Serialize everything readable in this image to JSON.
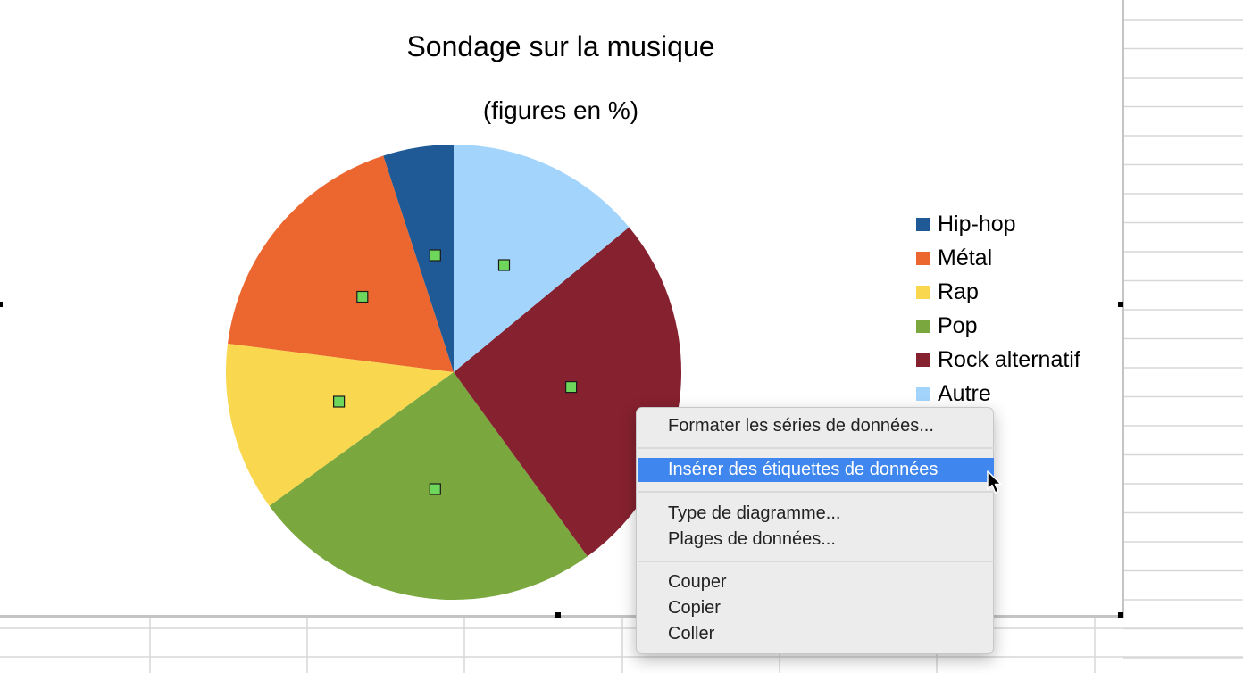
{
  "chart_data": {
    "type": "pie",
    "title": "Sondage sur la musique",
    "subtitle": "(figures en %)",
    "categories": [
      "Hip-hop",
      "Métal",
      "Rap",
      "Pop",
      "Rock alternatif",
      "Autre"
    ],
    "values": [
      5,
      18,
      12,
      25,
      26,
      14
    ],
    "colors": [
      "#205a96",
      "#ec6730",
      "#f9d84f",
      "#7aa73e",
      "#862130",
      "#a3d4fb"
    ],
    "legend_position": "right",
    "selection_marker_color": "#6fd65c"
  },
  "context_menu": {
    "items": [
      {
        "label": "Formater les séries de données..."
      },
      {
        "label": "Insérer des étiquettes de données"
      },
      {
        "label": "Type de diagramme..."
      },
      {
        "label": "Plages de données..."
      },
      {
        "label": "Couper"
      },
      {
        "label": "Copier"
      },
      {
        "label": "Coller"
      }
    ],
    "highlight_color": "#3f87ee"
  }
}
